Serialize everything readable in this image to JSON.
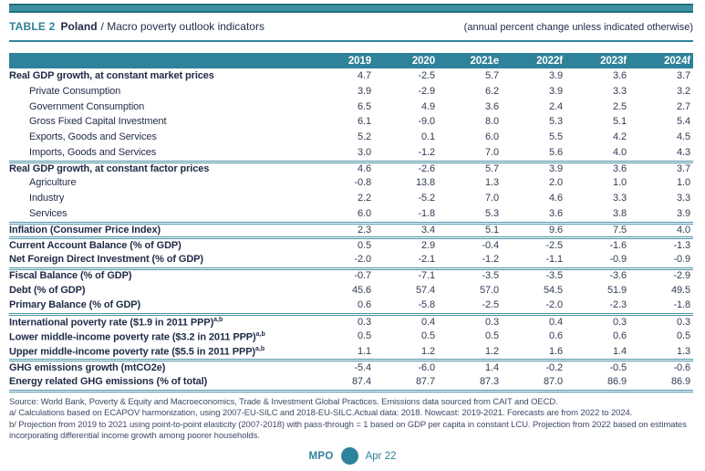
{
  "colors": {
    "accent_teal": "#2E8299",
    "topbar_fill": "#3E8FA0",
    "topbar_border": "#226D80"
  },
  "header": {
    "table_label": "TABLE 2",
    "country": "Poland",
    "subtitle": "/ Macro poverty outlook indicators",
    "right_note": "(annual percent change unless indicated otherwise)"
  },
  "table": {
    "columns": [
      "2019",
      "2020",
      "2021e",
      "2022f",
      "2023f",
      "2024f"
    ],
    "rows": [
      {
        "label": "Real GDP growth, at constant market prices",
        "bold": true,
        "indent": false,
        "sep": false,
        "values": [
          "4.7",
          "-2.5",
          "5.7",
          "3.9",
          "3.6",
          "3.7"
        ]
      },
      {
        "label": "Private Consumption",
        "bold": false,
        "indent": true,
        "sep": false,
        "values": [
          "3.9",
          "-2.9",
          "6.2",
          "3.9",
          "3.3",
          "3.2"
        ]
      },
      {
        "label": "Government Consumption",
        "bold": false,
        "indent": true,
        "sep": false,
        "values": [
          "6.5",
          "4.9",
          "3.6",
          "2.4",
          "2.5",
          "2.7"
        ]
      },
      {
        "label": "Gross Fixed Capital Investment",
        "bold": false,
        "indent": true,
        "sep": false,
        "values": [
          "6.1",
          "-9.0",
          "8.0",
          "5.3",
          "5.1",
          "5.4"
        ]
      },
      {
        "label": "Exports, Goods and Services",
        "bold": false,
        "indent": true,
        "sep": false,
        "values": [
          "5.2",
          "0.1",
          "6.0",
          "5.5",
          "4.2",
          "4.5"
        ]
      },
      {
        "label": "Imports, Goods and Services",
        "bold": false,
        "indent": true,
        "sep": false,
        "values": [
          "3.0",
          "-1.2",
          "7.0",
          "5.6",
          "4.0",
          "4.3"
        ]
      },
      {
        "label": "Real GDP growth, at constant factor prices",
        "bold": true,
        "indent": false,
        "sep": true,
        "values": [
          "4.6",
          "-2.6",
          "5.7",
          "3.9",
          "3.6",
          "3.7"
        ]
      },
      {
        "label": "Agriculture",
        "bold": false,
        "indent": true,
        "sep": false,
        "values": [
          "-0.8",
          "13.8",
          "1.3",
          "2.0",
          "1.0",
          "1.0"
        ]
      },
      {
        "label": "Industry",
        "bold": false,
        "indent": true,
        "sep": false,
        "values": [
          "2.2",
          "-5.2",
          "7.0",
          "4.6",
          "3.3",
          "3.3"
        ]
      },
      {
        "label": "Services",
        "bold": false,
        "indent": true,
        "sep": false,
        "values": [
          "6.0",
          "-1.8",
          "5.3",
          "3.6",
          "3.8",
          "3.9"
        ]
      },
      {
        "label": "Inflation (Consumer Price Index)",
        "bold": true,
        "indent": false,
        "sep": true,
        "values": [
          "2.3",
          "3.4",
          "5.1",
          "9.6",
          "7.5",
          "4.0"
        ]
      },
      {
        "label": "Current Account Balance (% of GDP)",
        "bold": true,
        "indent": false,
        "sep": true,
        "values": [
          "0.5",
          "2.9",
          "-0.4",
          "-2.5",
          "-1.6",
          "-1.3"
        ]
      },
      {
        "label": "Net Foreign Direct Investment (% of GDP)",
        "bold": true,
        "indent": false,
        "sep": false,
        "values": [
          "-2.0",
          "-2.1",
          "-1.2",
          "-1.1",
          "-0.9",
          "-0.9"
        ]
      },
      {
        "label": "Fiscal Balance (% of GDP)",
        "bold": true,
        "indent": false,
        "sep": true,
        "values": [
          "-0.7",
          "-7.1",
          "-3.5",
          "-3.5",
          "-3.6",
          "-2.9"
        ]
      },
      {
        "label": "Debt (% of GDP)",
        "bold": true,
        "indent": false,
        "sep": false,
        "values": [
          "45.6",
          "57.4",
          "57.0",
          "54.5",
          "51.9",
          "49.5"
        ]
      },
      {
        "label": "Primary Balance (% of GDP)",
        "bold": true,
        "indent": false,
        "sep": false,
        "values": [
          "0.6",
          "-5.8",
          "-2.5",
          "-2.0",
          "-2.3",
          "-1.8"
        ]
      },
      {
        "label": "International poverty rate ($1.9 in 2011 PPP)",
        "sup": "a,b",
        "bold": true,
        "indent": false,
        "sep": true,
        "values": [
          "0.3",
          "0.4",
          "0.3",
          "0.4",
          "0.3",
          "0.3"
        ]
      },
      {
        "label": "Lower middle-income poverty rate ($3.2 in 2011 PPP)",
        "sup": "a,b",
        "bold": true,
        "indent": false,
        "sep": false,
        "values": [
          "0.5",
          "0.5",
          "0.5",
          "0.6",
          "0.6",
          "0.5"
        ]
      },
      {
        "label": "Upper middle-income poverty rate ($5.5 in 2011 PPP)",
        "sup": "a,b",
        "bold": true,
        "indent": false,
        "sep": false,
        "values": [
          "1.1",
          "1.2",
          "1.2",
          "1.6",
          "1.4",
          "1.3"
        ]
      },
      {
        "label": "GHG emissions growth (mtCO2e)",
        "bold": true,
        "indent": false,
        "sep": true,
        "values": [
          "-5.4",
          "-6.0",
          "1.4",
          "-0.2",
          "-0.5",
          "-0.6"
        ]
      },
      {
        "label": "Energy related GHG emissions (% of total)",
        "bold": true,
        "indent": false,
        "sep": false,
        "values": [
          "87.4",
          "87.7",
          "87.3",
          "87.0",
          "86.9",
          "86.9"
        ]
      }
    ]
  },
  "footnotes": [
    "Source: World Bank, Poverty & Equity and Macroeconomics, Trade & Investment Global Practices. Emissions data sourced from CAIT and OECD.",
    "a/ Calculations based on ECAPOV harmonization, using 2007-EU-SILC and 2018-EU-SILC.Actual data: 2018. Nowcast: 2019-2021. Forecasts are from 2022 to 2024.",
    "b/ Projection from 2019 to 2021 using point-to-point elasticity (2007-2018) with pass-through = 1 based on GDP per capita in constant LCU. Projection from 2022 based on estimates incorporating differential income growth among poorer households."
  ],
  "footer": {
    "mpo_label": "MPO",
    "date_label": "Apr 22"
  }
}
